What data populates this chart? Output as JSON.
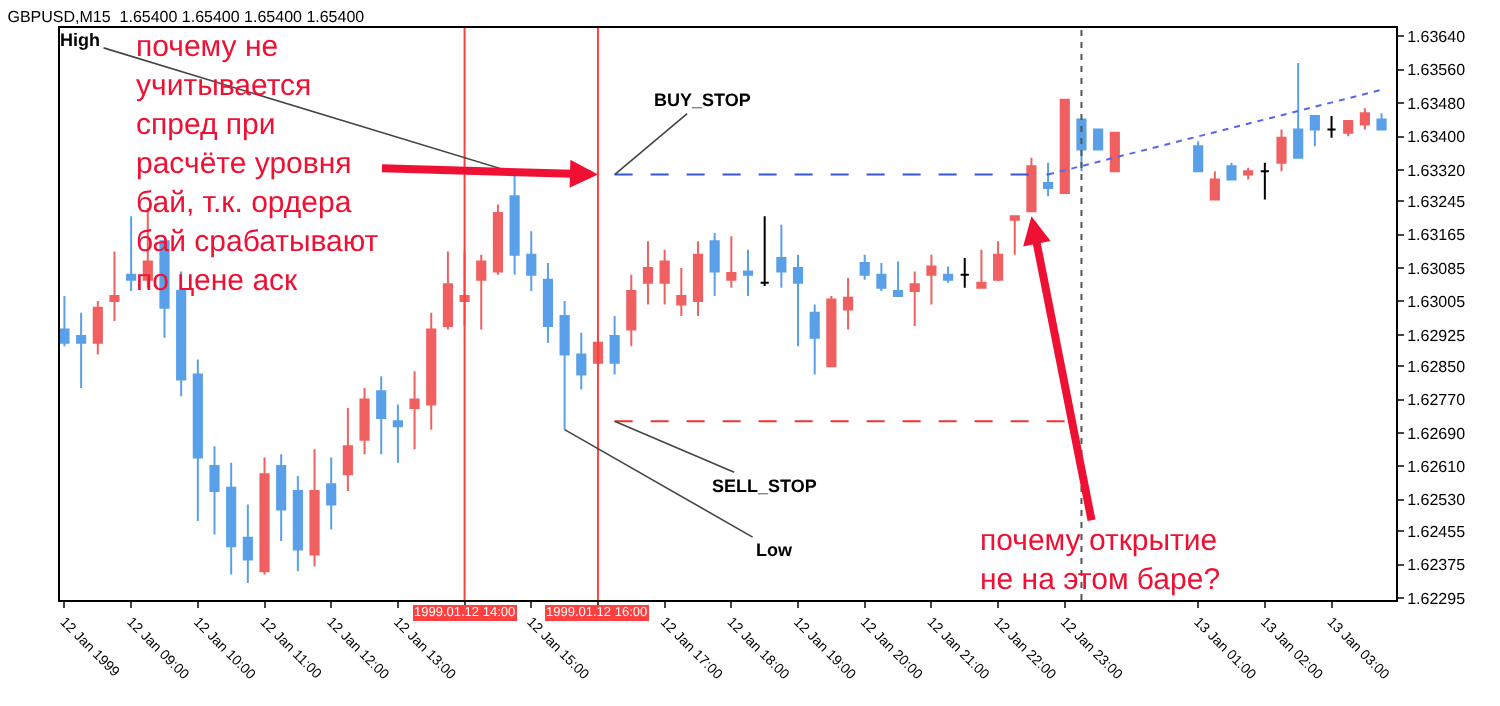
{
  "chart_data": {
    "type": "candlestick",
    "title": "GBPUSD,M15  1.65400 1.65400 1.65400 1.65400",
    "x": [
      "1999-01-12T08:00",
      "1999-01-12T08:15",
      "1999-01-12T08:30",
      "1999-01-12T08:45",
      "1999-01-12T09:00",
      "1999-01-12T09:15",
      "1999-01-12T09:30",
      "1999-01-12T09:45",
      "1999-01-12T10:00",
      "1999-01-12T10:15",
      "1999-01-12T10:30",
      "1999-01-12T10:45",
      "1999-01-12T11:00",
      "1999-01-12T11:15",
      "1999-01-12T11:30",
      "1999-01-12T11:45",
      "1999-01-12T12:00",
      "1999-01-12T12:15",
      "1999-01-12T12:30",
      "1999-01-12T12:45",
      "1999-01-12T13:00",
      "1999-01-12T13:15",
      "1999-01-12T13:30",
      "1999-01-12T13:45",
      "1999-01-12T14:00",
      "1999-01-12T14:15",
      "1999-01-12T14:30",
      "1999-01-12T14:45",
      "1999-01-12T15:00",
      "1999-01-12T15:15",
      "1999-01-12T15:30",
      "1999-01-12T15:45",
      "1999-01-12T16:00",
      "1999-01-12T16:15",
      "1999-01-12T16:30",
      "1999-01-12T16:45",
      "1999-01-12T17:00",
      "1999-01-12T17:15",
      "1999-01-12T17:30",
      "1999-01-12T17:45",
      "1999-01-12T18:00",
      "1999-01-12T18:15",
      "1999-01-12T18:30",
      "1999-01-12T18:45",
      "1999-01-12T19:00",
      "1999-01-12T19:15",
      "1999-01-12T19:30",
      "1999-01-12T19:45",
      "1999-01-12T20:00",
      "1999-01-12T20:15",
      "1999-01-12T20:30",
      "1999-01-12T20:45",
      "1999-01-12T21:00",
      "1999-01-12T21:15",
      "1999-01-12T21:30",
      "1999-01-12T21:45",
      "1999-01-12T22:00",
      "1999-01-12T22:15",
      "1999-01-12T22:30",
      "1999-01-12T22:45",
      "1999-01-12T23:00",
      "1999-01-12T23:15",
      "1999-01-12T23:30",
      "1999-01-12T23:45",
      "1999-01-13T01:00",
      "1999-01-13T01:15",
      "1999-01-13T01:30",
      "1999-01-13T01:45",
      "1999-01-13T02:00",
      "1999-01-13T02:15",
      "1999-01-13T02:30",
      "1999-01-13T02:45",
      "1999-01-13T03:00",
      "1999-01-13T03:15",
      "1999-01-13T03:30",
      "1999-01-13T03:45"
    ],
    "ohlc": [
      [
        1.62938,
        1.63018,
        1.62898,
        1.62906
      ],
      [
        1.62922,
        1.62978,
        1.62798,
        1.62906
      ],
      [
        1.62906,
        1.63006,
        1.62878,
        1.6299
      ],
      [
        1.63006,
        1.63125,
        1.62958,
        1.63018
      ],
      [
        1.63069,
        1.63209,
        1.6303,
        1.63057
      ],
      [
        1.63057,
        1.63229,
        1.63038,
        1.63101
      ],
      [
        1.63149,
        1.63149,
        1.62918,
        1.6299
      ],
      [
        1.6303,
        1.63077,
        1.62778,
        1.62818
      ],
      [
        1.6283,
        1.62866,
        1.62479,
        1.62631
      ],
      [
        1.62611,
        1.62658,
        1.62447,
        1.62551
      ],
      [
        1.62559,
        1.62619,
        1.62351,
        1.62419
      ],
      [
        1.62439,
        1.62519,
        1.62331,
        1.62387
      ],
      [
        1.62359,
        1.62631,
        1.62351,
        1.62591
      ],
      [
        1.62611,
        1.62639,
        1.62431,
        1.62507
      ],
      [
        1.62551,
        1.62587,
        1.62359,
        1.62411
      ],
      [
        1.62399,
        1.62651,
        1.62371,
        1.62551
      ],
      [
        1.62567,
        1.62631,
        1.62459,
        1.62519
      ],
      [
        1.62591,
        1.6275,
        1.62551,
        1.62658
      ],
      [
        1.62674,
        1.62798,
        1.62639,
        1.6277
      ],
      [
        1.6279,
        1.62826,
        1.62639,
        1.62726
      ],
      [
        1.62718,
        1.62758,
        1.62619,
        1.62706
      ],
      [
        1.6275,
        1.62838,
        1.62651,
        1.6277
      ],
      [
        1.62758,
        1.62978,
        1.62698,
        1.62938
      ],
      [
        1.62946,
        1.63125,
        1.62938,
        1.63046
      ],
      [
        1.63006,
        1.63125,
        1.62946,
        1.63018
      ],
      [
        1.63057,
        1.63117,
        1.62938,
        1.63101
      ],
      [
        1.63077,
        1.63237,
        1.63069,
        1.63217
      ],
      [
        1.63257,
        1.63313,
        1.63069,
        1.63117
      ],
      [
        1.63117,
        1.63173,
        1.6303,
        1.63069
      ],
      [
        1.63057,
        1.63097,
        1.62906,
        1.62946
      ],
      [
        1.6297,
        1.63006,
        1.62698,
        1.62878
      ],
      [
        1.62878,
        1.6293,
        1.62794,
        1.6283
      ],
      [
        1.62858,
        1.62918,
        1.62858,
        1.62906
      ],
      [
        1.62922,
        1.6297,
        1.6283,
        1.62858
      ],
      [
        1.62938,
        1.63069,
        1.62898,
        1.6303
      ],
      [
        1.6305,
        1.63149,
        1.62998,
        1.63085
      ],
      [
        1.6305,
        1.63129,
        1.62998,
        1.63101
      ],
      [
        1.62998,
        1.63085,
        1.6297,
        1.63018
      ],
      [
        1.63006,
        1.63149,
        1.6297,
        1.63117
      ],
      [
        1.63149,
        1.63169,
        1.63018,
        1.63077
      ],
      [
        1.63057,
        1.63161,
        1.63038,
        1.63073
      ],
      [
        1.63077,
        1.63129,
        1.63018,
        1.63069
      ],
      [
        1.6305,
        1.63209,
        1.63042,
        1.6305
      ],
      [
        1.63109,
        1.63189,
        1.63038,
        1.63077
      ],
      [
        1.63085,
        1.63117,
        1.62898,
        1.6305
      ],
      [
        1.62978,
        1.62998,
        1.6283,
        1.62918
      ],
      [
        1.6285,
        1.63018,
        1.6285,
        1.6301
      ],
      [
        1.62986,
        1.63061,
        1.62938,
        1.63014
      ],
      [
        1.63097,
        1.63117,
        1.63057,
        1.63069
      ],
      [
        1.63069,
        1.63097,
        1.6303,
        1.63038
      ],
      [
        1.6303,
        1.63101,
        1.63018,
        1.63018
      ],
      [
        1.6303,
        1.63077,
        1.62946,
        1.63046
      ],
      [
        1.63069,
        1.63117,
        1.62998,
        1.63089
      ],
      [
        1.63069,
        1.63089,
        1.6305,
        1.63057
      ],
      [
        1.63069,
        1.63109,
        1.63038,
        1.63069
      ],
      [
        1.63038,
        1.63129,
        1.63038,
        1.6305
      ],
      [
        1.63057,
        1.63149,
        1.63054,
        1.63117
      ],
      [
        1.63201,
        1.63209,
        1.63117,
        1.63209
      ],
      [
        1.63221,
        1.63349,
        1.63221,
        1.63329
      ],
      [
        1.63289,
        1.63337,
        1.63257,
        1.63277
      ],
      [
        1.63265,
        1.63488,
        1.63265,
        1.63488
      ],
      [
        1.63441,
        1.63441,
        1.63317,
        1.63369
      ],
      [
        1.63417,
        1.63417,
        1.63369,
        1.63369
      ],
      [
        1.63317,
        1.63409,
        1.63317,
        1.63409
      ],
      [
        1.63377,
        1.63389,
        1.63317,
        1.63317
      ],
      [
        1.63249,
        1.63317,
        1.63249,
        1.63297
      ],
      [
        1.63329,
        1.63337,
        1.63297,
        1.63297
      ],
      [
        1.63309,
        1.63325,
        1.63297,
        1.63317
      ],
      [
        1.63317,
        1.63337,
        1.63249,
        1.63317
      ],
      [
        1.63337,
        1.63417,
        1.63317,
        1.63397
      ],
      [
        1.63417,
        1.63576,
        1.63349,
        1.63349
      ],
      [
        1.63449,
        1.63449,
        1.63377,
        1.63417
      ],
      [
        1.63417,
        1.63449,
        1.63397,
        1.63417
      ],
      [
        1.63409,
        1.63437,
        1.63401,
        1.63437
      ],
      [
        1.63429,
        1.63468,
        1.63417,
        1.63456
      ],
      [
        1.63441,
        1.63456,
        1.63417,
        1.63417
      ]
    ],
    "colors": [
      "#5aa0e8",
      "#5aa0e8",
      "#f06060",
      "#f06060",
      "#5aa0e8",
      "#f06060",
      "#5aa0e8",
      "#5aa0e8",
      "#5aa0e8",
      "#5aa0e8",
      "#5aa0e8",
      "#5aa0e8",
      "#f06060",
      "#5aa0e8",
      "#5aa0e8",
      "#f06060",
      "#5aa0e8",
      "#f06060",
      "#f06060",
      "#5aa0e8",
      "#5aa0e8",
      "#f06060",
      "#f06060",
      "#f06060",
      "#f06060",
      "#f06060",
      "#f06060",
      "#5aa0e8",
      "#5aa0e8",
      "#5aa0e8",
      "#5aa0e8",
      "#5aa0e8",
      "#f06060",
      "#5aa0e8",
      "#f06060",
      "#f06060",
      "#f06060",
      "#f06060",
      "#f06060",
      "#5aa0e8",
      "#f06060",
      "#5aa0e8",
      "#000000",
      "#5aa0e8",
      "#5aa0e8",
      "#5aa0e8",
      "#f06060",
      "#f06060",
      "#5aa0e8",
      "#5aa0e8",
      "#5aa0e8",
      "#f06060",
      "#f06060",
      "#5aa0e8",
      "#000000",
      "#f06060",
      "#f06060",
      "#f06060",
      "#f06060",
      "#5aa0e8",
      "#f06060",
      "#5aa0e8",
      "#5aa0e8",
      "#f06060",
      "#5aa0e8",
      "#f06060",
      "#5aa0e8",
      "#f06060",
      "#000000",
      "#f06060",
      "#5aa0e8",
      "#5aa0e8",
      "#000000",
      "#f06060",
      "#f06060",
      "#5aa0e8"
    ],
    "series": [
      {
        "type": "line",
        "name": "BUY_STOP",
        "color": "#3355dd",
        "line_style": "dashed",
        "x": [
          "1999-01-12T16:15",
          "1999-01-12T22:45"
        ],
        "values": [
          1.63309,
          1.63309
        ]
      },
      {
        "type": "line",
        "name": "SELL_STOP",
        "color": "#ee3333",
        "line_style": "dashed",
        "x": [
          "1999-01-12T16:15",
          "1999-01-12T23:15"
        ],
        "values": [
          1.62718,
          1.62718
        ]
      },
      {
        "type": "line",
        "color": "#5566ee",
        "line_style": "dotted",
        "x": [
          "1999-01-12T22:45",
          "1999-01-13T03:45"
        ],
        "values": [
          1.63309,
          1.63512
        ]
      }
    ],
    "ref_lines": [
      {
        "axis": "x",
        "value": "1999-01-12T14:00",
        "label": "1999.01.12 14:00",
        "color": "#ff4040",
        "line_style": "solid"
      },
      {
        "axis": "x",
        "value": "1999-01-12T16:00",
        "label": "1999.01.12 16:00",
        "color": "#ff4040",
        "line_style": "solid"
      },
      {
        "axis": "x",
        "value": "1999-01-12T23:15",
        "color": "#555555",
        "line_style": "dotted"
      }
    ],
    "annotations": [
      {
        "text": "High",
        "x": "1999-01-12T14:45",
        "y": 1.63313
      },
      {
        "text": "Low",
        "x": "1999-01-12T15:30",
        "y": 1.62698
      },
      {
        "text": "почему не учитывается спред при расчёте уровня бай, т.к. ордера бай срабатывают по цене аск",
        "x": "1999-01-12T16:00",
        "y": 1.63309
      },
      {
        "text": "почему открытие не на этом баре?",
        "x": "1999-01-12T22:30",
        "y": 1.63209
      }
    ],
    "xlim": [
      "1999-01-12T07:56",
      "1999-01-13T03:58"
    ],
    "xticks": [
      {
        "value": "1999-01-12T08:00",
        "label": "12 Jan 1999"
      },
      {
        "value": "1999-01-12T09:00",
        "label": "12 Jan 09:00"
      },
      {
        "value": "1999-01-12T10:00",
        "label": "12 Jan 10:00"
      },
      {
        "value": "1999-01-12T11:00",
        "label": "12 Jan 11:00"
      },
      {
        "value": "1999-01-12T12:00",
        "label": "12 Jan 12:00"
      },
      {
        "value": "1999-01-12T13:00",
        "label": "12 Jan 13:00"
      },
      {
        "value": "1999-01-12T14:00",
        "label": null
      },
      {
        "value": "1999-01-12T15:00",
        "label": "12 Jan 15:00"
      },
      {
        "value": "1999-01-12T16:00",
        "label": null
      },
      {
        "value": "1999-01-12T17:00",
        "label": "12 Jan 17:00"
      },
      {
        "value": "1999-01-12T18:00",
        "label": "12 Jan 18:00"
      },
      {
        "value": "1999-01-12T19:00",
        "label": "12 Jan 19:00"
      },
      {
        "value": "1999-01-12T20:00",
        "label": "12 Jan 20:00"
      },
      {
        "value": "1999-01-12T21:00",
        "label": "12 Jan 21:00"
      },
      {
        "value": "1999-01-12T22:00",
        "label": "12 Jan 22:00"
      },
      {
        "value": "1999-01-12T23:00",
        "label": "12 Jan 23:00"
      },
      {
        "value": "1999-01-13T01:00",
        "label": "13 Jan 01:00"
      },
      {
        "value": "1999-01-13T02:00",
        "label": "13 Jan 02:00"
      },
      {
        "value": "1999-01-13T03:00",
        "label": "13 Jan 03:00"
      }
    ],
    "ylim": [
      1.6229,
      1.6366
    ],
    "yticks": [
      {
        "value": 1.6364,
        "label": "1.63640"
      },
      {
        "value": 1.6356,
        "label": "1.63560"
      },
      {
        "value": 1.6348,
        "label": "1.63480"
      },
      {
        "value": 1.634,
        "label": "1.63400"
      },
      {
        "value": 1.6332,
        "label": "1.63320"
      },
      {
        "value": 1.63245,
        "label": "1.63245"
      },
      {
        "value": 1.63165,
        "label": "1.63165"
      },
      {
        "value": 1.63085,
        "label": "1.63085"
      },
      {
        "value": 1.63005,
        "label": "1.63005"
      },
      {
        "value": 1.62925,
        "label": "1.62925"
      },
      {
        "value": 1.6285,
        "label": "1.62850"
      },
      {
        "value": 1.6277,
        "label": "1.62770"
      },
      {
        "value": 1.6269,
        "label": "1.62690"
      },
      {
        "value": 1.6261,
        "label": "1.62610"
      },
      {
        "value": 1.6253,
        "label": "1.62530"
      },
      {
        "value": 1.62455,
        "label": "1.62455"
      },
      {
        "value": 1.62375,
        "label": "1.62375"
      },
      {
        "value": 1.62295,
        "label": "1.62295"
      }
    ],
    "legend": false
  }
}
